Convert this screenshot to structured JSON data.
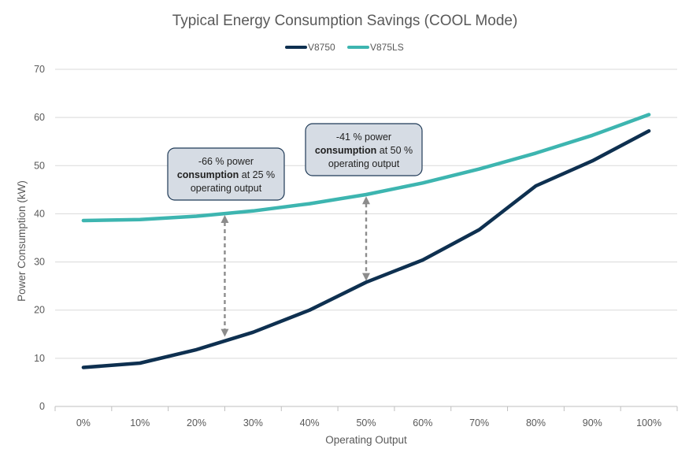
{
  "chart_data": {
    "type": "line",
    "title": "Typical Energy Consumption Savings (COOL Mode)",
    "xlabel": "Operating Output",
    "ylabel": "Power Consumption (kW)",
    "categories": [
      "0%",
      "10%",
      "20%",
      "30%",
      "40%",
      "50%",
      "60%",
      "70%",
      "80%",
      "90%",
      "100%"
    ],
    "ylim": [
      0,
      70
    ],
    "yticks": [
      0,
      10,
      20,
      30,
      40,
      50,
      60,
      70
    ],
    "grid": true,
    "legend_position": "top-center",
    "series": [
      {
        "name": "V8750",
        "color": "#0e3050",
        "values": [
          8.1,
          9.0,
          11.8,
          15.4,
          20.0,
          25.8,
          30.4,
          36.7,
          45.8,
          51.0,
          57.2
        ]
      },
      {
        "name": "V875LS",
        "color": "#3db5b0",
        "values": [
          38.6,
          38.8,
          39.5,
          40.6,
          42.1,
          44.0,
          46.4,
          49.3,
          52.6,
          56.3,
          60.6
        ]
      }
    ],
    "annotations": [
      {
        "name": "savings-25",
        "at_output": 25,
        "from_value": 14.3,
        "to_value": 39.9,
        "bold_part": "-66 % power",
        "line1": "-66 % power",
        "line2_bold": "consumption",
        "line2_rest": " at 25 %",
        "line3": "operating output"
      },
      {
        "name": "savings-50",
        "at_output": 50,
        "from_value": 25.9,
        "to_value": 43.8,
        "line1": "-41 % power",
        "line2_bold": "consumption",
        "line2_rest": " at 50 %",
        "line3": "operating output"
      }
    ]
  }
}
